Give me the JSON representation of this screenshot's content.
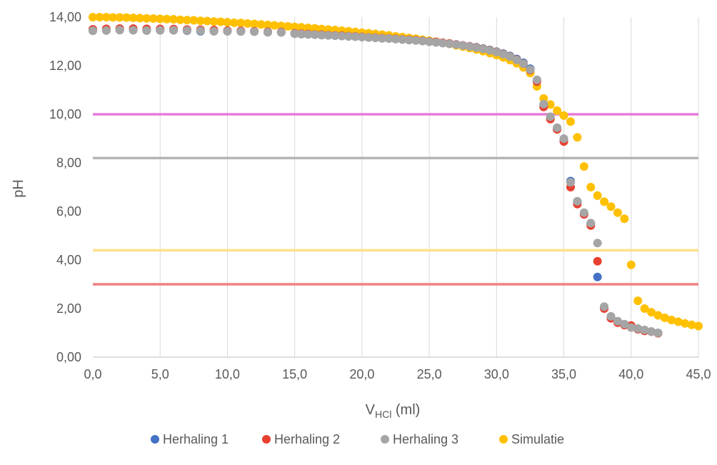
{
  "chart_data": {
    "type": "scatter",
    "xlabel": {
      "main": "V",
      "sub": "HCl",
      "suffix": " (ml)"
    },
    "ylabel": "pH",
    "xlim": [
      0,
      45
    ],
    "ylim": [
      0,
      14
    ],
    "x_ticks": [
      "0,0",
      "5,0",
      "10,0",
      "15,0",
      "20,0",
      "25,0",
      "30,0",
      "35,0",
      "40,0",
      "45,0"
    ],
    "y_ticks": [
      "0,00",
      "2,00",
      "4,00",
      "6,00",
      "8,00",
      "10,00",
      "12,00",
      "14,00"
    ],
    "grid": "vertical",
    "legend_position": "bottom",
    "reference_lines": [
      {
        "y": 10.0,
        "color": "#e87ad8"
      },
      {
        "y": 8.2,
        "color": "#b4b4b4"
      },
      {
        "y": 4.4,
        "color": "#ffe08a"
      },
      {
        "y": 3.0,
        "color": "#f08080"
      }
    ],
    "series": [
      {
        "name": "Herhaling 1",
        "color": "#4472c4",
        "points": [
          [
            0,
            13.44
          ],
          [
            1,
            13.46
          ],
          [
            2,
            13.47
          ],
          [
            3,
            13.47
          ],
          [
            4,
            13.45
          ],
          [
            5,
            13.46
          ],
          [
            6,
            13.46
          ],
          [
            7,
            13.44
          ],
          [
            8,
            13.42
          ],
          [
            9,
            13.42
          ],
          [
            10,
            13.42
          ],
          [
            11,
            13.41
          ],
          [
            12,
            13.41
          ],
          [
            13,
            13.38
          ],
          [
            14,
            13.38
          ],
          [
            15,
            13.32
          ],
          [
            15.5,
            13.3
          ],
          [
            16,
            13.29
          ],
          [
            16.5,
            13.28
          ],
          [
            17,
            13.26
          ],
          [
            17.5,
            13.25
          ],
          [
            18,
            13.24
          ],
          [
            18.5,
            13.23
          ],
          [
            19,
            13.21
          ],
          [
            19.5,
            13.2
          ],
          [
            20,
            13.18
          ],
          [
            20.5,
            13.16
          ],
          [
            21,
            13.15
          ],
          [
            21.5,
            13.13
          ],
          [
            22,
            13.12
          ],
          [
            22.5,
            13.1
          ],
          [
            23,
            13.08
          ],
          [
            23.5,
            13.06
          ],
          [
            24,
            13.04
          ],
          [
            24.5,
            13.02
          ],
          [
            25,
            12.99
          ],
          [
            25.5,
            12.97
          ],
          [
            26,
            12.94
          ],
          [
            26.5,
            12.91
          ],
          [
            27,
            12.88
          ],
          [
            27.5,
            12.84
          ],
          [
            28,
            12.8
          ],
          [
            28.5,
            12.76
          ],
          [
            29,
            12.71
          ],
          [
            29.5,
            12.65
          ],
          [
            30,
            12.58
          ],
          [
            30.5,
            12.5
          ],
          [
            31,
            12.4
          ],
          [
            31.5,
            12.28
          ],
          [
            32,
            12.12
          ],
          [
            32.5,
            11.88
          ],
          [
            33,
            11.4
          ],
          [
            33.5,
            10.35
          ],
          [
            34,
            9.85
          ],
          [
            34.5,
            9.42
          ],
          [
            35,
            8.95
          ],
          [
            35.5,
            7.25
          ],
          [
            36,
            6.4
          ],
          [
            36.5,
            5.9
          ],
          [
            37,
            5.5
          ],
          [
            37.5,
            3.3
          ],
          [
            38,
            2.05
          ],
          [
            38.5,
            1.65
          ],
          [
            39,
            1.45
          ],
          [
            39.5,
            1.35
          ],
          [
            40,
            1.25
          ],
          [
            40.5,
            1.15
          ],
          [
            41,
            1.1
          ],
          [
            41.5,
            1.05
          ],
          [
            42,
            1.0
          ]
        ]
      },
      {
        "name": "Herhaling 2",
        "color": "#e84030",
        "points": [
          [
            0,
            13.5
          ],
          [
            1,
            13.52
          ],
          [
            2,
            13.53
          ],
          [
            3,
            13.53
          ],
          [
            4,
            13.52
          ],
          [
            5,
            13.52
          ],
          [
            6,
            13.51
          ],
          [
            7,
            13.49
          ],
          [
            8,
            13.48
          ],
          [
            9,
            13.47
          ],
          [
            10,
            13.45
          ],
          [
            11,
            13.44
          ],
          [
            12,
            13.42
          ],
          [
            13,
            13.4
          ],
          [
            14,
            13.39
          ],
          [
            15,
            13.34
          ],
          [
            15.5,
            13.32
          ],
          [
            16,
            13.31
          ],
          [
            16.5,
            13.29
          ],
          [
            17,
            13.28
          ],
          [
            17.5,
            13.26
          ],
          [
            18,
            13.25
          ],
          [
            18.5,
            13.24
          ],
          [
            19,
            13.22
          ],
          [
            19.5,
            13.21
          ],
          [
            20,
            13.19
          ],
          [
            20.5,
            13.17
          ],
          [
            21,
            13.16
          ],
          [
            21.5,
            13.14
          ],
          [
            22,
            13.13
          ],
          [
            22.5,
            13.11
          ],
          [
            23,
            13.09
          ],
          [
            23.5,
            13.07
          ],
          [
            24,
            13.05
          ],
          [
            24.5,
            13.03
          ],
          [
            25,
            13.0
          ],
          [
            25.5,
            12.98
          ],
          [
            26,
            12.95
          ],
          [
            26.5,
            12.92
          ],
          [
            27,
            12.88
          ],
          [
            27.5,
            12.84
          ],
          [
            28,
            12.8
          ],
          [
            28.5,
            12.75
          ],
          [
            29,
            12.7
          ],
          [
            29.5,
            12.64
          ],
          [
            30,
            12.57
          ],
          [
            30.5,
            12.48
          ],
          [
            31,
            12.38
          ],
          [
            31.5,
            12.25
          ],
          [
            32,
            12.08
          ],
          [
            32.5,
            11.82
          ],
          [
            33,
            11.35
          ],
          [
            33.5,
            10.3
          ],
          [
            34,
            9.8
          ],
          [
            34.5,
            9.38
          ],
          [
            35,
            8.88
          ],
          [
            35.5,
            7.0
          ],
          [
            36,
            6.3
          ],
          [
            36.5,
            5.88
          ],
          [
            37,
            5.42
          ],
          [
            37.5,
            3.95
          ],
          [
            38,
            2.0
          ],
          [
            38.5,
            1.6
          ],
          [
            39,
            1.42
          ],
          [
            39.5,
            1.32
          ],
          [
            40,
            1.3
          ],
          [
            40.5,
            1.15
          ],
          [
            41,
            1.08
          ],
          [
            41.5,
            1.05
          ],
          [
            42,
            0.98
          ]
        ]
      },
      {
        "name": "Herhaling 3",
        "color": "#a5a5a5",
        "points": [
          [
            0,
            13.44
          ],
          [
            1,
            13.45
          ],
          [
            2,
            13.47
          ],
          [
            3,
            13.46
          ],
          [
            4,
            13.45
          ],
          [
            5,
            13.46
          ],
          [
            6,
            13.46
          ],
          [
            7,
            13.45
          ],
          [
            8,
            13.44
          ],
          [
            9,
            13.42
          ],
          [
            10,
            13.42
          ],
          [
            11,
            13.41
          ],
          [
            12,
            13.4
          ],
          [
            13,
            13.38
          ],
          [
            14,
            13.37
          ],
          [
            15,
            13.32
          ],
          [
            15.5,
            13.3
          ],
          [
            16,
            13.29
          ],
          [
            16.5,
            13.28
          ],
          [
            17,
            13.26
          ],
          [
            17.5,
            13.25
          ],
          [
            18,
            13.24
          ],
          [
            18.5,
            13.22
          ],
          [
            19,
            13.21
          ],
          [
            19.5,
            13.2
          ],
          [
            20,
            13.18
          ],
          [
            20.5,
            13.16
          ],
          [
            21,
            13.15
          ],
          [
            21.5,
            13.13
          ],
          [
            22,
            13.12
          ],
          [
            22.5,
            13.1
          ],
          [
            23,
            13.08
          ],
          [
            23.5,
            13.06
          ],
          [
            24,
            13.04
          ],
          [
            24.5,
            13.02
          ],
          [
            25,
            12.99
          ],
          [
            25.5,
            12.96
          ],
          [
            26,
            12.93
          ],
          [
            26.5,
            12.9
          ],
          [
            27,
            12.87
          ],
          [
            27.5,
            12.83
          ],
          [
            28,
            12.79
          ],
          [
            28.5,
            12.74
          ],
          [
            29,
            12.69
          ],
          [
            29.5,
            12.63
          ],
          [
            30,
            12.56
          ],
          [
            30.5,
            12.47
          ],
          [
            31,
            12.37
          ],
          [
            31.5,
            12.24
          ],
          [
            32,
            12.08
          ],
          [
            32.5,
            11.84
          ],
          [
            33,
            11.42
          ],
          [
            33.5,
            10.42
          ],
          [
            34,
            9.9
          ],
          [
            34.5,
            9.45
          ],
          [
            35,
            9.0
          ],
          [
            35.5,
            7.2
          ],
          [
            36,
            6.42
          ],
          [
            36.5,
            5.95
          ],
          [
            37,
            5.52
          ],
          [
            37.5,
            4.7
          ],
          [
            38,
            2.08
          ],
          [
            38.5,
            1.68
          ],
          [
            39,
            1.48
          ],
          [
            39.5,
            1.36
          ],
          [
            40,
            1.22
          ],
          [
            40.5,
            1.18
          ],
          [
            41,
            1.12
          ],
          [
            41.5,
            1.05
          ],
          [
            42,
            1.0
          ]
        ]
      },
      {
        "name": "Simulatie",
        "color": "#ffc000",
        "points": [
          [
            0,
            14.0
          ],
          [
            0.5,
            14.0
          ],
          [
            1,
            14.0
          ],
          [
            1.5,
            13.99
          ],
          [
            2,
            13.99
          ],
          [
            2.5,
            13.98
          ],
          [
            3,
            13.97
          ],
          [
            3.5,
            13.96
          ],
          [
            4,
            13.95
          ],
          [
            4.5,
            13.94
          ],
          [
            5,
            13.93
          ],
          [
            5.5,
            13.92
          ],
          [
            6,
            13.91
          ],
          [
            6.5,
            13.89
          ],
          [
            7,
            13.88
          ],
          [
            7.5,
            13.87
          ],
          [
            8,
            13.85
          ],
          [
            8.5,
            13.84
          ],
          [
            9,
            13.82
          ],
          [
            9.5,
            13.81
          ],
          [
            10,
            13.79
          ],
          [
            10.5,
            13.77
          ],
          [
            11,
            13.76
          ],
          [
            11.5,
            13.74
          ],
          [
            12,
            13.72
          ],
          [
            12.5,
            13.7
          ],
          [
            13,
            13.68
          ],
          [
            13.5,
            13.66
          ],
          [
            14,
            13.64
          ],
          [
            14.5,
            13.62
          ],
          [
            15,
            13.6
          ],
          [
            15.5,
            13.58
          ],
          [
            16,
            13.56
          ],
          [
            16.5,
            13.54
          ],
          [
            17,
            13.51
          ],
          [
            17.5,
            13.49
          ],
          [
            18,
            13.47
          ],
          [
            18.5,
            13.44
          ],
          [
            19,
            13.42
          ],
          [
            19.5,
            13.39
          ],
          [
            20,
            13.36
          ],
          [
            20.5,
            13.34
          ],
          [
            21,
            13.31
          ],
          [
            21.5,
            13.28
          ],
          [
            22,
            13.25
          ],
          [
            22.5,
            13.21
          ],
          [
            23,
            13.18
          ],
          [
            23.5,
            13.14
          ],
          [
            24,
            13.11
          ],
          [
            24.5,
            13.07
          ],
          [
            25,
            13.03
          ],
          [
            25.5,
            12.99
          ],
          [
            26,
            12.94
          ],
          [
            26.5,
            12.9
          ],
          [
            27,
            12.84
          ],
          [
            27.5,
            12.79
          ],
          [
            28,
            12.73
          ],
          [
            28.5,
            12.67
          ],
          [
            29,
            12.6
          ],
          [
            29.5,
            12.52
          ],
          [
            30,
            12.44
          ],
          [
            30.5,
            12.34
          ],
          [
            31,
            12.23
          ],
          [
            31.5,
            12.1
          ],
          [
            32,
            11.93
          ],
          [
            32.5,
            11.7
          ],
          [
            33,
            11.15
          ],
          [
            33.5,
            10.65
          ],
          [
            34,
            10.4
          ],
          [
            34.5,
            10.15
          ],
          [
            35,
            9.95
          ],
          [
            35.5,
            9.7
          ],
          [
            36,
            9.05
          ],
          [
            36.5,
            7.85
          ],
          [
            37,
            7.0
          ],
          [
            37.5,
            6.65
          ],
          [
            38,
            6.4
          ],
          [
            38.5,
            6.2
          ],
          [
            39,
            5.95
          ],
          [
            39.5,
            5.7
          ],
          [
            40,
            3.8
          ],
          [
            40.5,
            2.32
          ],
          [
            41,
            2.0
          ],
          [
            41.5,
            1.85
          ],
          [
            42,
            1.72
          ],
          [
            42.5,
            1.62
          ],
          [
            43,
            1.53
          ],
          [
            43.5,
            1.46
          ],
          [
            44,
            1.39
          ],
          [
            44.5,
            1.33
          ],
          [
            45,
            1.28
          ]
        ]
      }
    ]
  }
}
